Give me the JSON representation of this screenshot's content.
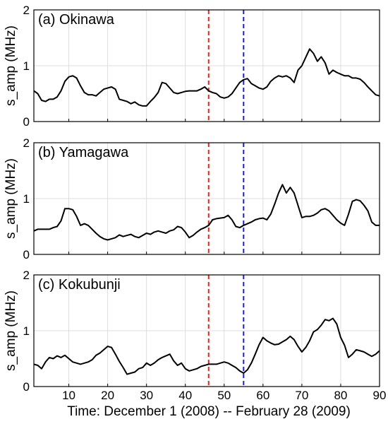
{
  "figure": {
    "xlabel": "Time: December 1 (2008) -- February 28 (2009)"
  },
  "chart_data": [
    {
      "type": "line",
      "title": "(a) Okinawa",
      "xlabel": "Time: December 1 (2008) -- February 28 (2009)",
      "ylabel": "s_amp (MHz)",
      "xlim": [
        1,
        90
      ],
      "ylim": [
        0,
        2
      ],
      "xticks": [
        10,
        20,
        30,
        40,
        50,
        60,
        70,
        80,
        90
      ],
      "yticks": [
        0,
        1,
        2
      ],
      "grid": true,
      "vlines": [
        {
          "x": 46,
          "color": "#e8231d",
          "style": "dashed"
        },
        {
          "x": 55,
          "color": "#1a23c2",
          "style": "dashed"
        }
      ],
      "series": [
        {
          "color": "#000000",
          "x": [
            1,
            2,
            3,
            4,
            5,
            6,
            7,
            8,
            9,
            10,
            11,
            12,
            13,
            14,
            15,
            16,
            17,
            18,
            19,
            20,
            21,
            22,
            23,
            24,
            25,
            26,
            27,
            28,
            29,
            30,
            31,
            32,
            33,
            34,
            35,
            36,
            37,
            38,
            39,
            40,
            41,
            42,
            43,
            44,
            45,
            46,
            47,
            48,
            49,
            50,
            51,
            52,
            53,
            54,
            55,
            56,
            57,
            58,
            59,
            60,
            61,
            62,
            63,
            64,
            65,
            66,
            67,
            68,
            69,
            70,
            71,
            72,
            73,
            74,
            75,
            76,
            77,
            78,
            79,
            80,
            81,
            82,
            83,
            84,
            85,
            86,
            87,
            88,
            89,
            90
          ],
          "y": [
            0.55,
            0.5,
            0.38,
            0.36,
            0.4,
            0.4,
            0.44,
            0.55,
            0.72,
            0.8,
            0.82,
            0.78,
            0.64,
            0.52,
            0.48,
            0.48,
            0.46,
            0.52,
            0.58,
            0.6,
            0.62,
            0.58,
            0.4,
            0.38,
            0.36,
            0.32,
            0.35,
            0.3,
            0.28,
            0.28,
            0.36,
            0.43,
            0.52,
            0.7,
            0.68,
            0.6,
            0.52,
            0.5,
            0.52,
            0.54,
            0.55,
            0.55,
            0.55,
            0.58,
            0.62,
            0.55,
            0.52,
            0.5,
            0.44,
            0.42,
            0.44,
            0.5,
            0.6,
            0.7,
            0.75,
            0.77,
            0.68,
            0.64,
            0.6,
            0.58,
            0.62,
            0.72,
            0.78,
            0.82,
            0.8,
            0.82,
            0.78,
            0.7,
            0.92,
            1.0,
            1.15,
            1.3,
            1.22,
            1.08,
            1.16,
            1.05,
            0.85,
            0.92,
            0.88,
            0.85,
            0.82,
            0.82,
            0.78,
            0.78,
            0.76,
            0.7,
            0.62,
            0.55,
            0.48,
            0.46
          ]
        }
      ]
    },
    {
      "type": "line",
      "title": "(b) Yamagawa",
      "xlabel": "Time: December 1 (2008) -- February 28 (2009)",
      "ylabel": "s_amp (MHz)",
      "xlim": [
        1,
        90
      ],
      "ylim": [
        0,
        2
      ],
      "xticks": [
        10,
        20,
        30,
        40,
        50,
        60,
        70,
        80,
        90
      ],
      "yticks": [
        0,
        1,
        2
      ],
      "grid": true,
      "vlines": [
        {
          "x": 46,
          "color": "#e8231d",
          "style": "dashed"
        },
        {
          "x": 55,
          "color": "#1a23c2",
          "style": "dashed"
        }
      ],
      "series": [
        {
          "color": "#000000",
          "x": [
            1,
            2,
            3,
            4,
            5,
            6,
            7,
            8,
            9,
            10,
            11,
            12,
            13,
            14,
            15,
            16,
            17,
            18,
            19,
            20,
            21,
            22,
            23,
            24,
            25,
            26,
            27,
            28,
            29,
            30,
            31,
            32,
            33,
            34,
            35,
            36,
            37,
            38,
            39,
            40,
            41,
            42,
            43,
            44,
            45,
            46,
            47,
            48,
            49,
            50,
            51,
            52,
            53,
            54,
            55,
            56,
            57,
            58,
            59,
            60,
            61,
            62,
            63,
            64,
            65,
            66,
            67,
            68,
            69,
            70,
            71,
            72,
            73,
            74,
            75,
            76,
            77,
            78,
            79,
            80,
            81,
            82,
            83,
            84,
            85,
            86,
            87,
            88,
            89,
            90
          ],
          "y": [
            0.42,
            0.45,
            0.45,
            0.45,
            0.45,
            0.48,
            0.5,
            0.6,
            0.82,
            0.82,
            0.8,
            0.68,
            0.52,
            0.55,
            0.52,
            0.45,
            0.38,
            0.32,
            0.28,
            0.26,
            0.28,
            0.3,
            0.35,
            0.32,
            0.34,
            0.36,
            0.32,
            0.3,
            0.34,
            0.38,
            0.36,
            0.4,
            0.42,
            0.4,
            0.38,
            0.42,
            0.44,
            0.5,
            0.48,
            0.4,
            0.3,
            0.34,
            0.4,
            0.45,
            0.48,
            0.52,
            0.62,
            0.64,
            0.65,
            0.66,
            0.7,
            0.62,
            0.5,
            0.48,
            0.52,
            0.55,
            0.58,
            0.62,
            0.64,
            0.65,
            0.62,
            0.72,
            0.9,
            1.1,
            1.25,
            1.1,
            1.2,
            1.1,
            0.88,
            0.66,
            0.68,
            0.68,
            0.7,
            0.74,
            0.8,
            0.82,
            0.78,
            0.7,
            0.62,
            0.56,
            0.52,
            0.72,
            0.95,
            0.98,
            0.96,
            0.88,
            0.78,
            0.58,
            0.52,
            0.52
          ]
        }
      ]
    },
    {
      "type": "line",
      "title": "(c) Kokubunji",
      "xlabel": "Time: December 1 (2008) -- February 28 (2009)",
      "ylabel": "s_amp (MHz)",
      "xlim": [
        1,
        90
      ],
      "ylim": [
        0,
        2
      ],
      "xticks": [
        10,
        20,
        30,
        40,
        50,
        60,
        70,
        80,
        90
      ],
      "yticks": [
        0,
        1,
        2
      ],
      "grid": true,
      "vlines": [
        {
          "x": 46,
          "color": "#e8231d",
          "style": "dashed"
        },
        {
          "x": 55,
          "color": "#1a23c2",
          "style": "dashed"
        }
      ],
      "series": [
        {
          "color": "#000000",
          "x": [
            1,
            2,
            3,
            4,
            5,
            6,
            7,
            8,
            9,
            10,
            11,
            12,
            13,
            14,
            15,
            16,
            17,
            18,
            19,
            20,
            21,
            22,
            23,
            24,
            25,
            26,
            27,
            28,
            29,
            30,
            31,
            32,
            33,
            34,
            35,
            36,
            37,
            38,
            39,
            40,
            41,
            42,
            43,
            44,
            45,
            46,
            47,
            48,
            49,
            50,
            51,
            52,
            53,
            54,
            55,
            56,
            57,
            58,
            59,
            60,
            61,
            62,
            63,
            64,
            65,
            66,
            67,
            68,
            69,
            70,
            71,
            72,
            73,
            74,
            75,
            76,
            77,
            78,
            79,
            80,
            81,
            82,
            83,
            84,
            85,
            86,
            87,
            88,
            89,
            90
          ],
          "y": [
            0.4,
            0.38,
            0.32,
            0.44,
            0.52,
            0.5,
            0.55,
            0.52,
            0.56,
            0.5,
            0.44,
            0.42,
            0.4,
            0.42,
            0.44,
            0.48,
            0.56,
            0.6,
            0.66,
            0.72,
            0.7,
            0.58,
            0.45,
            0.34,
            0.22,
            0.24,
            0.26,
            0.32,
            0.34,
            0.42,
            0.38,
            0.42,
            0.48,
            0.52,
            0.55,
            0.58,
            0.46,
            0.38,
            0.42,
            0.32,
            0.28,
            0.3,
            0.32,
            0.36,
            0.38,
            0.4,
            0.4,
            0.4,
            0.42,
            0.44,
            0.42,
            0.38,
            0.34,
            0.28,
            0.24,
            0.3,
            0.42,
            0.58,
            0.75,
            0.88,
            0.82,
            0.78,
            0.75,
            0.76,
            0.8,
            0.84,
            0.9,
            0.84,
            0.72,
            0.62,
            0.7,
            0.82,
            0.98,
            1.02,
            1.1,
            1.2,
            1.18,
            1.22,
            1.12,
            0.88,
            0.74,
            0.52,
            0.58,
            0.66,
            0.64,
            0.62,
            0.58,
            0.54,
            0.58,
            0.64
          ]
        }
      ]
    }
  ]
}
